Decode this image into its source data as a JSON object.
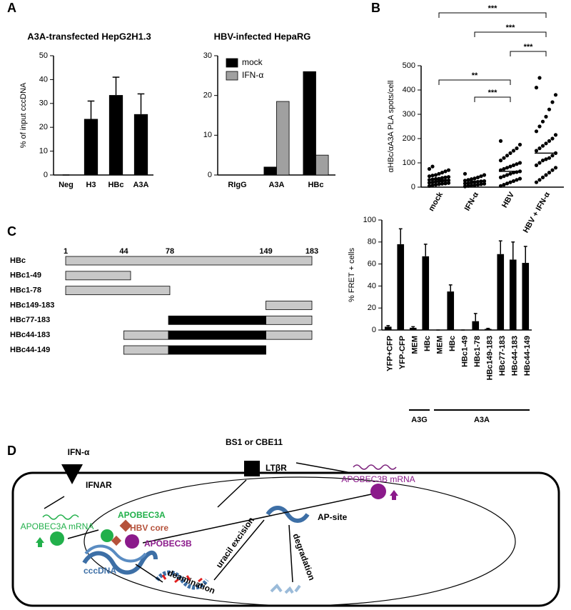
{
  "panels": [
    "A",
    "B",
    "C",
    "D"
  ],
  "chart_data": [
    {
      "type": "bar",
      "title": "A3A-transfected HepG2H1.3",
      "y_label": "% of input cccDNA",
      "categories": [
        "Neg",
        "H3",
        "HBc",
        "A3A"
      ],
      "values": [
        0,
        23.5,
        33.5,
        25.5
      ],
      "errors": [
        0,
        7.5,
        7.5,
        8.5
      ],
      "color": "#000000",
      "ylim": [
        0,
        50
      ],
      "yticks": [
        0,
        10,
        20,
        30,
        40,
        50
      ]
    },
    {
      "type": "grouped_bar",
      "title": "HBV-infected HepaRG",
      "categories": [
        "RIgG",
        "A3A",
        "HBc"
      ],
      "series": [
        {
          "name": "mock",
          "color": "#000000",
          "values": [
            0,
            2,
            26
          ]
        },
        {
          "name": "IFN-α",
          "color": "#a0a0a0",
          "values": [
            0,
            18.5,
            5
          ]
        }
      ],
      "ylim": [
        0,
        30
      ],
      "yticks": [
        0,
        10,
        20,
        30
      ],
      "legend": "top-left"
    },
    {
      "type": "dot",
      "y_label": "αHBc/αA3A PLA spots/cell",
      "categories": [
        "mock",
        "IFN-α",
        "HBV",
        "HBV + IFN-α"
      ],
      "points": [
        [
          5,
          8,
          10,
          12,
          14,
          15,
          17,
          18,
          20,
          22,
          24,
          25,
          27,
          28,
          30,
          32,
          34,
          35,
          38,
          40,
          42,
          45,
          48,
          50,
          55,
          60,
          65,
          70,
          75,
          85
        ],
        [
          3,
          5,
          7,
          8,
          10,
          12,
          14,
          15,
          16,
          18,
          20,
          22,
          24,
          25,
          27,
          30,
          33,
          36,
          40,
          45,
          50,
          55
        ],
        [
          5,
          10,
          15,
          20,
          25,
          30,
          35,
          40,
          45,
          50,
          55,
          60,
          62,
          65,
          70,
          75,
          80,
          85,
          90,
          95,
          100,
          110,
          120,
          130,
          140,
          150,
          160,
          175,
          190
        ],
        [
          20,
          30,
          40,
          50,
          60,
          70,
          80,
          90,
          100,
          110,
          115,
          120,
          130,
          140,
          150,
          160,
          170,
          180,
          190,
          200,
          215,
          230,
          250,
          270,
          290,
          320,
          350,
          380,
          410,
          450
        ]
      ],
      "means": [
        30,
        25,
        65,
        140
      ],
      "comparisons": [
        {
          "pair": [
            0,
            3
          ],
          "label": "***"
        },
        {
          "pair": [
            1,
            3
          ],
          "label": "***"
        },
        {
          "pair": [
            2,
            3
          ],
          "label": "***"
        },
        {
          "pair": [
            0,
            2
          ],
          "label": "**"
        },
        {
          "pair": [
            1,
            2
          ],
          "label": "***"
        }
      ],
      "color": "#000000",
      "ylim": [
        0,
        500
      ],
      "yticks": [
        0,
        100,
        200,
        300,
        400,
        500
      ]
    },
    {
      "type": "construct",
      "xlim": [
        1,
        183
      ],
      "xticks": [
        1,
        44,
        78,
        149,
        183
      ],
      "rows": [
        {
          "name": "HBc",
          "segments": [
            {
              "start": 1,
              "end": 183,
              "color": "#c8c8c8"
            }
          ]
        },
        {
          "name": "HBc1-49",
          "segments": [
            {
              "start": 1,
              "end": 49,
              "color": "#c8c8c8"
            }
          ]
        },
        {
          "name": "HBc1-78",
          "segments": [
            {
              "start": 1,
              "end": 78,
              "color": "#c8c8c8"
            }
          ]
        },
        {
          "name": "HBc149-183",
          "segments": [
            {
              "start": 149,
              "end": 183,
              "color": "#c8c8c8"
            }
          ]
        },
        {
          "name": "HBc77-183",
          "segments": [
            {
              "start": 77,
              "end": 149,
              "color": "#000000"
            },
            {
              "start": 149,
              "end": 183,
              "color": "#c8c8c8"
            }
          ]
        },
        {
          "name": "HBc44-183",
          "segments": [
            {
              "start": 44,
              "end": 77,
              "color": "#c8c8c8"
            },
            {
              "start": 77,
              "end": 149,
              "color": "#000000"
            },
            {
              "start": 149,
              "end": 183,
              "color": "#c8c8c8"
            }
          ]
        },
        {
          "name": "HBc44-149",
          "segments": [
            {
              "start": 44,
              "end": 77,
              "color": "#c8c8c8"
            },
            {
              "start": 77,
              "end": 149,
              "color": "#000000"
            }
          ]
        }
      ]
    },
    {
      "type": "bar",
      "y_label": "% FRET + cells",
      "categories": [
        "YFP+CFP",
        "YFP-CFP",
        "MEM",
        "HBc",
        "MEM",
        "HBc",
        "HBc1-49",
        "HBc1-78",
        "HBc149-183",
        "HBc77-183",
        "HBc44-183",
        "HBc44-149"
      ],
      "values": [
        3,
        78,
        2,
        67,
        0,
        35,
        0,
        8,
        1,
        69,
        64,
        61
      ],
      "errors": [
        1,
        14,
        1,
        11,
        0,
        6,
        0,
        7,
        0.5,
        12,
        16,
        15
      ],
      "groups": [
        {
          "label": "A3G",
          "from": 2,
          "to": 3
        },
        {
          "label": "A3A",
          "from": 4,
          "to": 11
        }
      ],
      "color": "#000000",
      "ylim": [
        0,
        100
      ],
      "yticks": [
        0,
        20,
        40,
        60,
        80,
        100
      ]
    }
  ],
  "diagram": {
    "ifn": "IFN-α",
    "ifnar": "IFNAR",
    "antibody": "BS1 or CBE11",
    "ltbr": "LTβR",
    "a3b_mrna": "APOBEC3B mRNA",
    "a3a_mrna": "APOBEC3A mRNA",
    "a3a": "APOBEC3A",
    "core": "HBV core",
    "a3b": "APOBEC3B",
    "cccdna": "cccDNA",
    "deamination": "deamination",
    "excision": "uracil excision",
    "ap_site": "AP-site",
    "degradation": "degradation"
  }
}
